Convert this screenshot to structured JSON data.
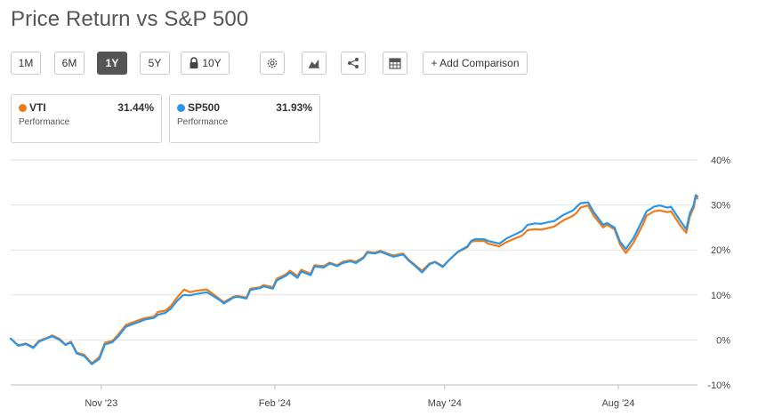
{
  "page": {
    "title": "Price Return vs S&P 500"
  },
  "toolbar": {
    "ranges": [
      {
        "label": "1M",
        "active": false
      },
      {
        "label": "6M",
        "active": false
      },
      {
        "label": "1Y",
        "active": true
      },
      {
        "label": "5Y",
        "active": false
      },
      {
        "label": "10Y",
        "active": false,
        "locked": true
      }
    ],
    "icons": [
      "gear-icon",
      "chart-type-icon",
      "share-icon",
      "table-icon"
    ],
    "add_comparison": "+ Add Comparison"
  },
  "legend": [
    {
      "name": "VTI",
      "value": "31.44%",
      "sublabel": "Performance",
      "color": "#f07a17"
    },
    {
      "name": "SP500",
      "value": "31.93%",
      "sublabel": "Performance",
      "color": "#2b96e8"
    }
  ],
  "chart_data": {
    "type": "line",
    "x_type": "date",
    "x_range": [
      "2023-09-14",
      "2024-09-12"
    ],
    "ylim": [
      -10,
      40
    ],
    "y_ticks": [
      -10,
      0,
      10,
      20,
      30,
      40
    ],
    "y_tick_labels": [
      "-10%",
      "0%",
      "10%",
      "20%",
      "30%",
      "40%"
    ],
    "x_ticks": [
      {
        "date": "2023-11-01",
        "label": "Nov '23"
      },
      {
        "date": "2024-02-01",
        "label": "Feb '24"
      },
      {
        "date": "2024-05-01",
        "label": "May '24"
      },
      {
        "date": "2024-08-01",
        "label": "Aug '24"
      }
    ],
    "grid": true,
    "y_axis_position": "right",
    "series": [
      {
        "name": "VTI",
        "color": "#f07a17",
        "points": [
          [
            "2023-09-14",
            0.3
          ],
          [
            "2023-09-18",
            -1.2
          ],
          [
            "2023-09-22",
            -0.8
          ],
          [
            "2023-09-26",
            -1.6
          ],
          [
            "2023-09-29",
            -0.2
          ],
          [
            "2023-10-04",
            0.6
          ],
          [
            "2023-10-06",
            1.0
          ],
          [
            "2023-10-10",
            0.2
          ],
          [
            "2023-10-13",
            -1.0
          ],
          [
            "2023-10-16",
            -0.4
          ],
          [
            "2023-10-19",
            -2.8
          ],
          [
            "2023-10-23",
            -3.3
          ],
          [
            "2023-10-27",
            -5.2
          ],
          [
            "2023-10-31",
            -3.8
          ],
          [
            "2023-11-03",
            -0.6
          ],
          [
            "2023-11-07",
            -0.2
          ],
          [
            "2023-11-10",
            1.2
          ],
          [
            "2023-11-14",
            3.3
          ],
          [
            "2023-11-17",
            3.8
          ],
          [
            "2023-11-21",
            4.4
          ],
          [
            "2023-11-24",
            4.8
          ],
          [
            "2023-11-29",
            5.2
          ],
          [
            "2023-12-01",
            6.2
          ],
          [
            "2023-12-05",
            6.5
          ],
          [
            "2023-12-08",
            7.6
          ],
          [
            "2023-12-11",
            9.3
          ],
          [
            "2023-12-14",
            10.8
          ],
          [
            "2023-12-15",
            11.2
          ],
          [
            "2023-12-18",
            10.6
          ],
          [
            "2023-12-21",
            10.9
          ],
          [
            "2023-12-27",
            11.2
          ],
          [
            "2023-12-29",
            10.6
          ],
          [
            "2024-01-03",
            9.0
          ],
          [
            "2024-01-05",
            8.4
          ],
          [
            "2024-01-10",
            9.6
          ],
          [
            "2024-01-12",
            9.8
          ],
          [
            "2024-01-17",
            9.4
          ],
          [
            "2024-01-19",
            11.4
          ],
          [
            "2024-01-24",
            11.7
          ],
          [
            "2024-01-26",
            12.2
          ],
          [
            "2024-01-31",
            11.7
          ],
          [
            "2024-02-02",
            13.6
          ],
          [
            "2024-02-07",
            14.6
          ],
          [
            "2024-02-09",
            15.4
          ],
          [
            "2024-02-13",
            14.2
          ],
          [
            "2024-02-15",
            15.6
          ],
          [
            "2024-02-20",
            14.7
          ],
          [
            "2024-02-22",
            16.6
          ],
          [
            "2024-02-27",
            16.4
          ],
          [
            "2024-03-01",
            17.2
          ],
          [
            "2024-03-05",
            16.6
          ],
          [
            "2024-03-08",
            17.4
          ],
          [
            "2024-03-12",
            17.7
          ],
          [
            "2024-03-15",
            17.4
          ],
          [
            "2024-03-19",
            18.4
          ],
          [
            "2024-03-21",
            19.6
          ],
          [
            "2024-03-25",
            19.4
          ],
          [
            "2024-03-28",
            19.8
          ],
          [
            "2024-04-02",
            19.0
          ],
          [
            "2024-04-04",
            18.8
          ],
          [
            "2024-04-09",
            19.2
          ],
          [
            "2024-04-12",
            17.8
          ],
          [
            "2024-04-16",
            16.4
          ],
          [
            "2024-04-19",
            15.4
          ],
          [
            "2024-04-23",
            17.0
          ],
          [
            "2024-04-26",
            17.4
          ],
          [
            "2024-04-30",
            16.4
          ],
          [
            "2024-05-03",
            17.6
          ],
          [
            "2024-05-08",
            19.5
          ],
          [
            "2024-05-13",
            20.6
          ],
          [
            "2024-05-15",
            21.8
          ],
          [
            "2024-05-17",
            22.0
          ],
          [
            "2024-05-22",
            22.0
          ],
          [
            "2024-05-24",
            21.4
          ],
          [
            "2024-05-30",
            20.8
          ],
          [
            "2024-06-03",
            21.8
          ],
          [
            "2024-06-07",
            22.5
          ],
          [
            "2024-06-11",
            23.2
          ],
          [
            "2024-06-14",
            24.4
          ],
          [
            "2024-06-18",
            24.6
          ],
          [
            "2024-06-21",
            24.5
          ],
          [
            "2024-06-25",
            24.9
          ],
          [
            "2024-06-28",
            25.2
          ],
          [
            "2024-07-03",
            26.6
          ],
          [
            "2024-07-08",
            27.6
          ],
          [
            "2024-07-10",
            28.3
          ],
          [
            "2024-07-12",
            29.4
          ],
          [
            "2024-07-16",
            29.9
          ],
          [
            "2024-07-19",
            27.6
          ],
          [
            "2024-07-24",
            25.0
          ],
          [
            "2024-07-26",
            25.6
          ],
          [
            "2024-07-30",
            24.6
          ],
          [
            "2024-08-02",
            21.2
          ],
          [
            "2024-08-05",
            19.3
          ],
          [
            "2024-08-07",
            20.4
          ],
          [
            "2024-08-09",
            21.6
          ],
          [
            "2024-08-14",
            25.6
          ],
          [
            "2024-08-16",
            27.6
          ],
          [
            "2024-08-20",
            28.6
          ],
          [
            "2024-08-23",
            28.8
          ],
          [
            "2024-08-27",
            28.4
          ],
          [
            "2024-08-29",
            28.6
          ],
          [
            "2024-09-03",
            25.4
          ],
          [
            "2024-09-06",
            23.8
          ],
          [
            "2024-09-08",
            27.5
          ],
          [
            "2024-09-10",
            29.4
          ],
          [
            "2024-09-11",
            31.8
          ],
          [
            "2024-09-12",
            31.4
          ]
        ]
      },
      {
        "name": "SP500",
        "color": "#2b96e8",
        "points": [
          [
            "2023-09-14",
            0.3
          ],
          [
            "2023-09-18",
            -1.3
          ],
          [
            "2023-09-22",
            -0.9
          ],
          [
            "2023-09-26",
            -1.8
          ],
          [
            "2023-09-29",
            -0.4
          ],
          [
            "2023-10-04",
            0.5
          ],
          [
            "2023-10-06",
            0.8
          ],
          [
            "2023-10-10",
            0.0
          ],
          [
            "2023-10-13",
            -1.1
          ],
          [
            "2023-10-16",
            -0.6
          ],
          [
            "2023-10-19",
            -3.0
          ],
          [
            "2023-10-23",
            -3.6
          ],
          [
            "2023-10-27",
            -5.4
          ],
          [
            "2023-10-31",
            -4.2
          ],
          [
            "2023-11-03",
            -1.0
          ],
          [
            "2023-11-07",
            -0.5
          ],
          [
            "2023-11-10",
            0.8
          ],
          [
            "2023-11-14",
            2.9
          ],
          [
            "2023-11-17",
            3.4
          ],
          [
            "2023-11-21",
            4.0
          ],
          [
            "2023-11-24",
            4.5
          ],
          [
            "2023-11-29",
            4.9
          ],
          [
            "2023-12-01",
            5.6
          ],
          [
            "2023-12-05",
            6.0
          ],
          [
            "2023-12-08",
            7.0
          ],
          [
            "2023-12-11",
            8.6
          ],
          [
            "2023-12-14",
            9.8
          ],
          [
            "2023-12-15",
            10.0
          ],
          [
            "2023-12-18",
            9.9
          ],
          [
            "2023-12-21",
            10.2
          ],
          [
            "2023-12-27",
            10.6
          ],
          [
            "2023-12-29",
            10.1
          ],
          [
            "2024-01-03",
            8.8
          ],
          [
            "2024-01-05",
            8.1
          ],
          [
            "2024-01-10",
            9.4
          ],
          [
            "2024-01-12",
            9.6
          ],
          [
            "2024-01-17",
            9.2
          ],
          [
            "2024-01-19",
            11.1
          ],
          [
            "2024-01-24",
            11.5
          ],
          [
            "2024-01-26",
            11.9
          ],
          [
            "2024-01-31",
            11.4
          ],
          [
            "2024-02-02",
            13.2
          ],
          [
            "2024-02-07",
            14.3
          ],
          [
            "2024-02-09",
            15.0
          ],
          [
            "2024-02-13",
            13.8
          ],
          [
            "2024-02-15",
            15.2
          ],
          [
            "2024-02-20",
            14.4
          ],
          [
            "2024-02-22",
            16.3
          ],
          [
            "2024-02-27",
            16.1
          ],
          [
            "2024-03-01",
            17.0
          ],
          [
            "2024-03-05",
            16.4
          ],
          [
            "2024-03-08",
            17.1
          ],
          [
            "2024-03-12",
            17.5
          ],
          [
            "2024-03-15",
            17.1
          ],
          [
            "2024-03-19",
            18.2
          ],
          [
            "2024-03-21",
            19.4
          ],
          [
            "2024-03-25",
            19.2
          ],
          [
            "2024-03-28",
            19.6
          ],
          [
            "2024-04-02",
            18.8
          ],
          [
            "2024-04-04",
            18.5
          ],
          [
            "2024-04-09",
            19.0
          ],
          [
            "2024-04-12",
            17.6
          ],
          [
            "2024-04-16",
            16.2
          ],
          [
            "2024-04-19",
            15.0
          ],
          [
            "2024-04-23",
            16.8
          ],
          [
            "2024-04-26",
            17.3
          ],
          [
            "2024-04-30",
            16.2
          ],
          [
            "2024-05-03",
            17.6
          ],
          [
            "2024-05-08",
            19.6
          ],
          [
            "2024-05-13",
            20.8
          ],
          [
            "2024-05-15",
            22.0
          ],
          [
            "2024-05-17",
            22.4
          ],
          [
            "2024-05-22",
            22.4
          ],
          [
            "2024-05-24",
            22.0
          ],
          [
            "2024-05-30",
            21.4
          ],
          [
            "2024-06-03",
            22.6
          ],
          [
            "2024-06-07",
            23.4
          ],
          [
            "2024-06-11",
            24.2
          ],
          [
            "2024-06-14",
            25.6
          ],
          [
            "2024-06-18",
            25.9
          ],
          [
            "2024-06-21",
            25.8
          ],
          [
            "2024-06-25",
            26.2
          ],
          [
            "2024-06-28",
            26.4
          ],
          [
            "2024-07-03",
            27.8
          ],
          [
            "2024-07-08",
            28.8
          ],
          [
            "2024-07-10",
            29.6
          ],
          [
            "2024-07-12",
            30.4
          ],
          [
            "2024-07-16",
            30.6
          ],
          [
            "2024-07-19",
            28.4
          ],
          [
            "2024-07-24",
            25.6
          ],
          [
            "2024-07-26",
            26.0
          ],
          [
            "2024-07-30",
            25.0
          ],
          [
            "2024-08-02",
            21.8
          ],
          [
            "2024-08-05",
            20.2
          ],
          [
            "2024-08-07",
            21.4
          ],
          [
            "2024-08-09",
            22.6
          ],
          [
            "2024-08-14",
            26.8
          ],
          [
            "2024-08-16",
            28.6
          ],
          [
            "2024-08-20",
            29.6
          ],
          [
            "2024-08-23",
            29.9
          ],
          [
            "2024-08-27",
            29.4
          ],
          [
            "2024-08-29",
            29.6
          ],
          [
            "2024-09-03",
            26.4
          ],
          [
            "2024-09-06",
            24.6
          ],
          [
            "2024-09-08",
            28.2
          ],
          [
            "2024-09-10",
            30.0
          ],
          [
            "2024-09-11",
            32.2
          ],
          [
            "2024-09-12",
            31.9
          ]
        ]
      }
    ]
  }
}
